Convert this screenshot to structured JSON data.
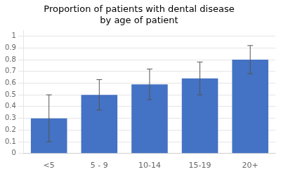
{
  "chart_data": {
    "type": "bar",
    "title": "Proportion of patients with dental disease",
    "subtitle": "by age of patient",
    "categories": [
      "<5",
      "5 - 9",
      "10-14",
      "15-19",
      "20+"
    ],
    "values": [
      0.3,
      0.5,
      0.59,
      0.64,
      0.8
    ],
    "errors": [
      0.2,
      0.13,
      0.13,
      0.14,
      0.12
    ],
    "color": "#4472C4",
    "ylim": [
      0,
      1.05
    ],
    "yticks": [
      0,
      0.1,
      0.2,
      0.3,
      0.4,
      0.5,
      0.6,
      0.7,
      0.8,
      0.9,
      1
    ],
    "grid": true
  }
}
